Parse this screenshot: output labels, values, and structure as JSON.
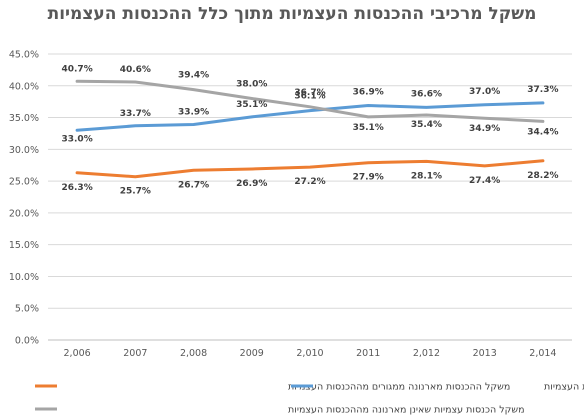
{
  "chart_data": {
    "type": "line",
    "title": "משקל מרכיבי ההכנסות העצמיות מתוך כלל ההכנסות העצמיות",
    "xlabel": "",
    "ylabel": "",
    "categories": [
      "2,006",
      "2007",
      "2,008",
      "2009",
      "2,010",
      "2011",
      "2,012",
      "2013",
      "2,014"
    ],
    "ylim": [
      0,
      45
    ],
    "yticks": [
      "0.0%",
      "5.0%",
      "10.0%",
      "15.0%",
      "20.0%",
      "25.0%",
      "30.0%",
      "35.0%",
      "40.0%",
      "45.0%"
    ],
    "grid": true,
    "legend_position": "bottom",
    "series": [
      {
        "name": "משקל ההכנסות מארנונה ממגורים מההכנסות העצמיות",
        "color": "#ED7D31",
        "values": [
          26.3,
          25.7,
          26.7,
          26.9,
          27.2,
          27.9,
          28.1,
          27.4,
          28.2
        ],
        "labels": [
          "26.3%",
          "25.7%",
          "26.7%",
          "26.9%",
          "27.2%",
          "27.9%",
          "28.1%",
          "27.4%",
          "28.2%"
        ]
      },
      {
        "name": "משקל ההכנסות מארנונה אחרת מההכנסות העצמיות",
        "color": "#5B9BD5",
        "values": [
          33.0,
          33.7,
          33.9,
          35.1,
          36.1,
          36.9,
          36.6,
          37.0,
          37.3
        ],
        "labels": [
          "33.0%",
          "33.7%",
          "33.9%",
          "35.1%",
          "36.1%",
          "36.9%",
          "36.6%",
          "37.0%",
          "37.3%"
        ]
      },
      {
        "name": "משקל הכנסות עצמיות שאינן מארנונה מההכנסות העצמיות",
        "color": "#A5A5A5",
        "values": [
          40.7,
          40.6,
          39.4,
          38.0,
          36.7,
          35.1,
          35.4,
          34.9,
          34.4
        ],
        "labels": [
          "40.7%",
          "40.6%",
          "39.4%",
          "38.0%",
          "36.7%",
          "35.1%",
          "35.4%",
          "34.9%",
          "34.4%"
        ]
      }
    ]
  }
}
